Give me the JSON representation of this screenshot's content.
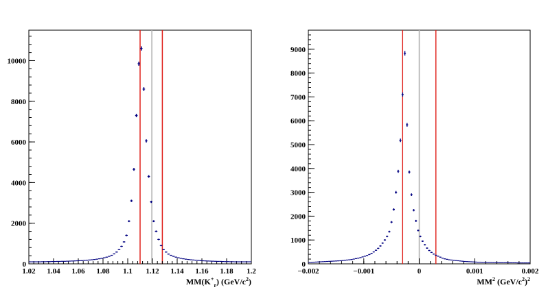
{
  "chart_data": [
    {
      "type": "scatter",
      "xlim": [
        1.02,
        1.2
      ],
      "ylim": [
        0,
        11500
      ],
      "xticks": [
        "1.02",
        "1.04",
        "1.06",
        "1.08",
        "1.1",
        "1.12",
        "1.14",
        "1.16",
        "1.18",
        "1.2"
      ],
      "yticks": [
        "0",
        "2000",
        "4000",
        "6000",
        "8000",
        "10000"
      ],
      "xlabel_parts": {
        "main": "MM(K",
        "sup": "+",
        "sub": "r",
        "rest": ") (GeV/c",
        "sup2": "2",
        "end": ")"
      },
      "grid": false,
      "cut_lines": [
        1.11,
        1.128
      ],
      "center_line": 1.1195,
      "colors": {
        "points": "#000080",
        "cut": "#e0201a",
        "center": "#b0b0b0"
      },
      "series": [
        {
          "x": [
            1.021,
            1.023,
            1.025,
            1.027,
            1.029,
            1.031,
            1.033,
            1.035,
            1.037,
            1.039,
            1.041,
            1.043,
            1.045,
            1.047,
            1.049,
            1.051,
            1.053,
            1.055,
            1.057,
            1.059,
            1.061,
            1.063,
            1.065,
            1.067,
            1.069,
            1.071,
            1.073,
            1.075,
            1.077,
            1.079,
            1.081,
            1.083,
            1.085,
            1.087,
            1.089,
            1.091,
            1.093,
            1.095,
            1.097,
            1.099,
            1.101,
            1.103,
            1.105,
            1.107,
            1.109,
            1.111,
            1.113,
            1.115,
            1.117,
            1.119,
            1.121,
            1.123,
            1.125,
            1.127,
            1.129,
            1.131,
            1.133,
            1.135,
            1.137,
            1.139,
            1.141,
            1.143,
            1.145,
            1.147,
            1.149,
            1.151,
            1.153,
            1.155,
            1.157,
            1.159,
            1.161,
            1.163,
            1.165,
            1.167,
            1.169,
            1.171,
            1.173,
            1.175,
            1.177,
            1.179,
            1.181,
            1.183,
            1.185,
            1.187,
            1.189,
            1.191,
            1.193,
            1.195,
            1.197,
            1.199
          ],
          "y": [
            100,
            100,
            100,
            100,
            100,
            105,
            105,
            110,
            110,
            115,
            115,
            120,
            120,
            125,
            125,
            130,
            135,
            140,
            145,
            150,
            155,
            160,
            170,
            180,
            190,
            200,
            215,
            230,
            250,
            270,
            300,
            330,
            370,
            420,
            490,
            580,
            700,
            860,
            1080,
            1400,
            2100,
            3100,
            4650,
            7300,
            9850,
            10600,
            8600,
            6050,
            4300,
            3050,
            2100,
            1600,
            1200,
            900,
            700,
            580,
            480,
            420,
            370,
            330,
            300,
            270,
            250,
            230,
            215,
            200,
            190,
            180,
            170,
            160,
            150,
            145,
            140,
            135,
            130,
            125,
            120,
            120,
            115,
            110,
            110,
            105,
            105,
            100,
            100,
            100,
            100,
            100,
            100,
            100
          ]
        }
      ]
    },
    {
      "type": "scatter",
      "xlim": [
        -0.002,
        0.002
      ],
      "ylim": [
        0,
        9800
      ],
      "xticks": [
        "−0.002",
        "−0.001",
        "0",
        "0.001",
        "0.002"
      ],
      "yticks": [
        "0",
        "1000",
        "2000",
        "3000",
        "4000",
        "5000",
        "6000",
        "7000",
        "8000",
        "9000"
      ],
      "xlabel_parts": {
        "main": "MM",
        "sup": "2",
        "rest": " (GeV/c",
        "sup2": "2",
        "end": ")",
        "sup3": "2"
      },
      "grid": false,
      "cut_lines": [
        -0.0003,
        0.0003
      ],
      "center_line": 0.0,
      "colors": {
        "points": "#000080",
        "cut": "#e0201a",
        "center": "#b0b0b0"
      },
      "series": [
        {
          "x": [
            -0.00198,
            -0.00194,
            -0.0019,
            -0.00186,
            -0.00182,
            -0.00178,
            -0.00174,
            -0.0017,
            -0.00166,
            -0.00162,
            -0.00158,
            -0.00154,
            -0.0015,
            -0.00146,
            -0.00142,
            -0.00138,
            -0.00134,
            -0.0013,
            -0.00126,
            -0.00122,
            -0.00118,
            -0.00114,
            -0.0011,
            -0.00106,
            -0.00102,
            -0.00098,
            -0.00094,
            -0.0009,
            -0.00086,
            -0.00082,
            -0.00078,
            -0.00074,
            -0.0007,
            -0.00066,
            -0.00062,
            -0.00058,
            -0.00054,
            -0.0005,
            -0.00046,
            -0.00042,
            -0.00038,
            -0.00034,
            -0.0003,
            -0.00026,
            -0.00022,
            -0.00018,
            -0.00014,
            -0.0001,
            -6e-05,
            -2e-05,
            2e-05,
            6e-05,
            0.0001,
            0.00014,
            0.00018,
            0.00022,
            0.00026,
            0.0003,
            0.00034,
            0.00038,
            0.00042,
            0.00046,
            0.0005,
            0.00054,
            0.00058,
            0.00062,
            0.00066,
            0.0007,
            0.00074,
            0.00078,
            0.00082,
            0.00086,
            0.0009,
            0.00094,
            0.00098,
            0.00102,
            0.00106,
            0.0011,
            0.00114,
            0.00118,
            0.00122,
            0.00126,
            0.0013,
            0.00134,
            0.00138,
            0.00142,
            0.00146,
            0.0015,
            0.00154,
            0.00158,
            0.00162,
            0.00166,
            0.0017,
            0.00174,
            0.00178,
            0.00182,
            0.00186,
            0.0019,
            0.00194,
            0.00198
          ],
          "y": [
            60,
            65,
            70,
            75,
            80,
            85,
            90,
            95,
            100,
            105,
            110,
            115,
            120,
            125,
            130,
            140,
            150,
            160,
            170,
            180,
            200,
            220,
            240,
            260,
            290,
            320,
            350,
            390,
            440,
            500,
            570,
            650,
            750,
            870,
            1000,
            1150,
            1350,
            1750,
            2280,
            3000,
            3880,
            5180,
            7100,
            8830,
            5830,
            3850,
            2900,
            2250,
            1800,
            1400,
            1150,
            950,
            800,
            660,
            560,
            480,
            410,
            360,
            320,
            280,
            240,
            210,
            190,
            170,
            160,
            150,
            140,
            130,
            120,
            110,
            100,
            95,
            90,
            85,
            80,
            75,
            70,
            70,
            65,
            65,
            60,
            60,
            60,
            55,
            55,
            55,
            50,
            50,
            50,
            50,
            45,
            45,
            45,
            45,
            40,
            40,
            40,
            40,
            40,
            40
          ]
        }
      ]
    }
  ]
}
